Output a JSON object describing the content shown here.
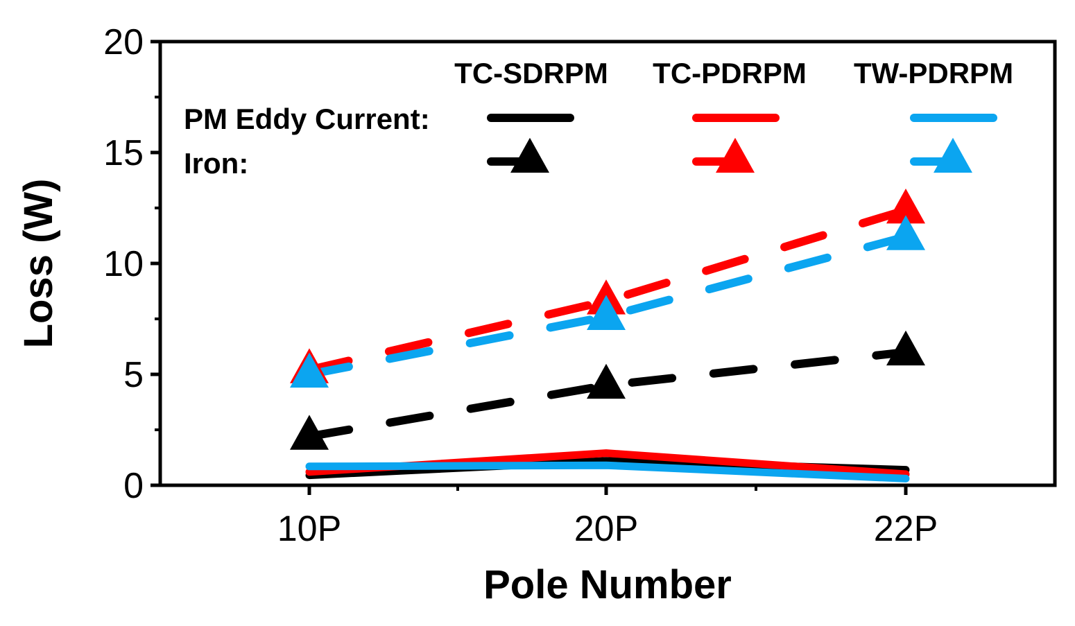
{
  "chart_data": {
    "type": "line",
    "title": "",
    "xlabel": "Pole Number",
    "ylabel": "Loss (W)",
    "categories": [
      "10P",
      "20P",
      "22P"
    ],
    "ylim": [
      0,
      20
    ],
    "yticks": [
      "0",
      "5",
      "10",
      "15",
      "20"
    ],
    "legend": {
      "machine_headers": [
        "TC-SDRPM",
        "TC-PDRPM",
        "TW-PDRPM"
      ],
      "row_labels": [
        "PM Eddy Current:",
        "Iron:"
      ]
    },
    "series": [
      {
        "name": "TC-SDRPM PM Eddy Current",
        "machine": "TC-SDRPM",
        "loss": "PM Eddy Current",
        "color": "#000000",
        "style": "solid",
        "values": [
          0.45,
          1.1,
          0.7
        ]
      },
      {
        "name": "TC-PDRPM PM Eddy Current",
        "machine": "TC-PDRPM",
        "loss": "PM Eddy Current",
        "color": "#ff0000",
        "style": "solid",
        "values": [
          0.6,
          1.45,
          0.5
        ]
      },
      {
        "name": "TW-PDRPM PM Eddy Current",
        "machine": "TW-PDRPM",
        "loss": "PM Eddy Current",
        "color": "#0ba5f0",
        "style": "solid",
        "values": [
          0.85,
          0.9,
          0.3
        ]
      },
      {
        "name": "TC-SDRPM Iron",
        "machine": "TC-SDRPM",
        "loss": "Iron",
        "color": "#000000",
        "style": "dashed",
        "marker": "triangle",
        "values": [
          2.2,
          4.5,
          6.0
        ]
      },
      {
        "name": "TC-PDRPM Iron",
        "machine": "TC-PDRPM",
        "loss": "Iron",
        "color": "#ff0000",
        "style": "dashed",
        "marker": "triangle",
        "values": [
          5.2,
          8.3,
          12.4
        ]
      },
      {
        "name": "TW-PDRPM Iron",
        "machine": "TW-PDRPM",
        "loss": "Iron",
        "color": "#0ba5f0",
        "style": "dashed",
        "marker": "triangle",
        "values": [
          5.0,
          7.6,
          11.2
        ]
      }
    ]
  }
}
